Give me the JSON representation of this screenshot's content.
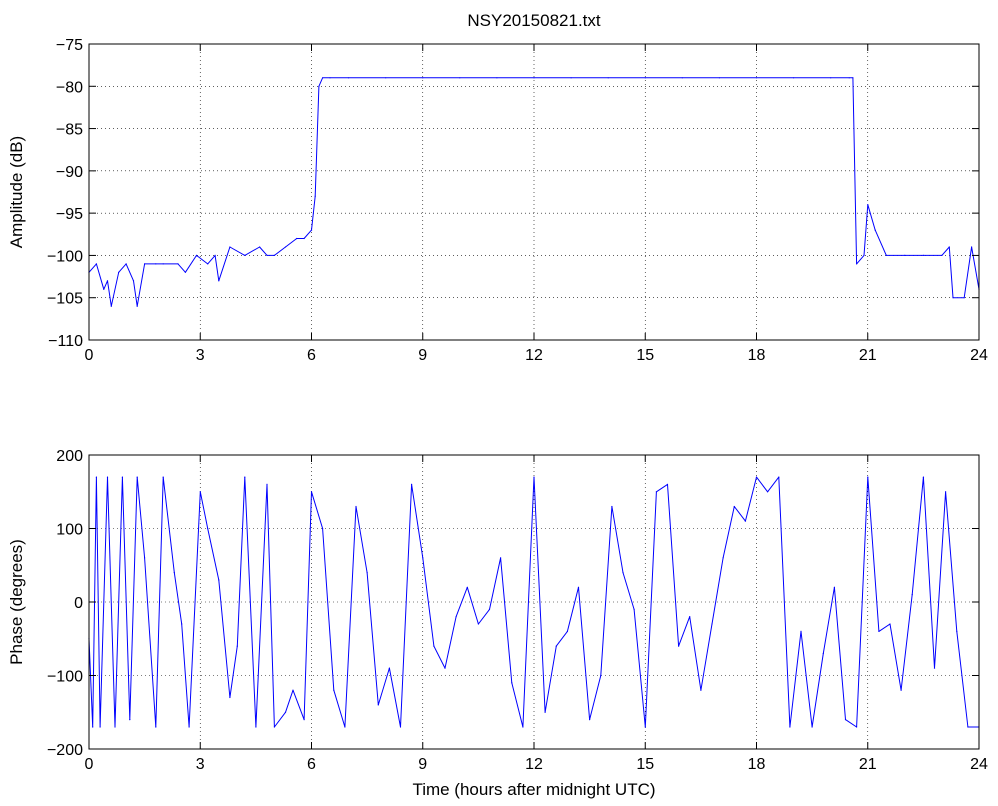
{
  "title": "NSY20150821.txt",
  "chart_data": [
    {
      "type": "line",
      "title": "NSY20150821.txt",
      "xlabel": "",
      "ylabel": "Amplitude (dB)",
      "xlim": [
        0,
        24
      ],
      "ylim": [
        -110,
        -75
      ],
      "xticks": [
        "0",
        "3",
        "6",
        "9",
        "12",
        "15",
        "18",
        "21",
        "24"
      ],
      "yticks": [
        "−75",
        "−80",
        "−85",
        "−90",
        "−95",
        "−100",
        "−105",
        "−110"
      ],
      "grid": true,
      "line_color": "#0000ff",
      "series": [
        {
          "x": [
            0,
            0.2,
            0.4,
            0.5,
            0.6,
            0.8,
            1.0,
            1.2,
            1.3,
            1.5,
            1.8,
            2.0,
            2.4,
            2.6,
            2.9,
            3.2,
            3.4,
            3.5,
            3.8,
            4.2,
            4.6,
            4.8,
            5.0,
            5.3,
            5.6,
            5.8,
            6.0,
            6.1,
            6.2,
            6.3,
            6.5,
            7.0,
            8.0,
            9.0,
            10.0,
            11.0,
            12.0,
            13.0,
            14.0,
            15.0,
            16.0,
            17.0,
            18.0,
            19.0,
            20.0,
            20.5,
            20.6,
            20.7,
            20.9,
            21.0,
            21.2,
            21.5,
            22.0,
            22.5,
            23.0,
            23.2,
            23.3,
            23.6,
            23.8,
            24.0
          ],
          "y": [
            -102,
            -101,
            -104,
            -103,
            -106,
            -102,
            -101,
            -103,
            -106,
            -101,
            -101,
            -101,
            -101,
            -102,
            -100,
            -101,
            -100,
            -103,
            -99,
            -100,
            -99,
            -100,
            -100,
            -99,
            -98,
            -98,
            -97,
            -93,
            -80,
            -79,
            -79,
            -79,
            -79,
            -79,
            -79,
            -79,
            -79,
            -79,
            -79,
            -79,
            -79,
            -79,
            -79,
            -79,
            -79,
            -79,
            -79,
            -101,
            -100,
            -94,
            -97,
            -100,
            -100,
            -100,
            -100,
            -99,
            -105,
            -105,
            -99,
            -104
          ]
        }
      ]
    },
    {
      "type": "line",
      "title": "",
      "xlabel": "Time (hours after midnight UTC)",
      "ylabel": "Phase (degrees)",
      "xlim": [
        0,
        24
      ],
      "ylim": [
        -200,
        200
      ],
      "xticks": [
        "0",
        "3",
        "6",
        "9",
        "12",
        "15",
        "18",
        "21",
        "24"
      ],
      "yticks": [
        "200",
        "100",
        "0",
        "−100",
        "−200"
      ],
      "grid": true,
      "line_color": "#0000ff",
      "series": [
        {
          "x": [
            0,
            0.1,
            0.2,
            0.3,
            0.5,
            0.7,
            0.9,
            1.1,
            1.3,
            1.5,
            1.8,
            2.0,
            2.3,
            2.5,
            2.7,
            3.0,
            3.2,
            3.5,
            3.8,
            4.0,
            4.2,
            4.5,
            4.8,
            5.0,
            5.3,
            5.5,
            5.8,
            6.0,
            6.3,
            6.6,
            6.9,
            7.2,
            7.5,
            7.8,
            8.1,
            8.4,
            8.7,
            9.0,
            9.3,
            9.6,
            9.9,
            10.2,
            10.5,
            10.8,
            11.1,
            11.4,
            11.7,
            12.0,
            12.3,
            12.6,
            12.9,
            13.2,
            13.5,
            13.8,
            14.1,
            14.4,
            14.7,
            15.0,
            15.3,
            15.6,
            15.9,
            16.2,
            16.5,
            16.8,
            17.1,
            17.4,
            17.7,
            18.0,
            18.3,
            18.6,
            18.9,
            19.2,
            19.5,
            19.8,
            20.1,
            20.4,
            20.7,
            21.0,
            21.3,
            21.6,
            21.9,
            22.2,
            22.5,
            22.8,
            23.1,
            23.4,
            23.7,
            24.0
          ],
          "y": [
            -50,
            -170,
            170,
            -170,
            170,
            -170,
            170,
            -160,
            170,
            60,
            -170,
            170,
            40,
            -30,
            -170,
            150,
            100,
            30,
            -130,
            -60,
            170,
            -170,
            160,
            -170,
            -150,
            -120,
            -160,
            150,
            100,
            -120,
            -170,
            130,
            40,
            -140,
            -90,
            -170,
            160,
            60,
            -60,
            -90,
            -20,
            20,
            -30,
            -10,
            60,
            -110,
            -170,
            170,
            -150,
            -60,
            -40,
            20,
            -160,
            -100,
            130,
            40,
            -10,
            -170,
            150,
            160,
            -60,
            -20,
            -120,
            -30,
            60,
            130,
            110,
            170,
            150,
            170,
            -170,
            -40,
            -170,
            -70,
            20,
            -160,
            -170,
            170,
            -40,
            -30,
            -120,
            10,
            170,
            -90,
            150,
            -40,
            -170,
            -170
          ]
        }
      ]
    }
  ]
}
